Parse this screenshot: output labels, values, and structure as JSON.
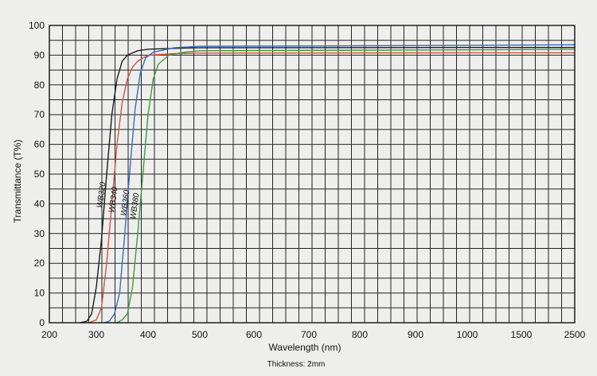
{
  "chart_data": {
    "type": "line",
    "title": "",
    "xlabel": "Wavelength (nm)",
    "ylabel": "Transmittance (T%)",
    "note": "Thickness: 2mm",
    "x_ticks": [
      "200",
      "300",
      "400",
      "500",
      "600",
      "700",
      "800",
      "900",
      "1000",
      "1500",
      "2500"
    ],
    "y_ticks": [
      "0",
      "10",
      "20",
      "30",
      "40",
      "50",
      "60",
      "70",
      "80",
      "90",
      "100"
    ],
    "xlim": [
      200,
      2500
    ],
    "ylim": [
      0,
      100
    ],
    "grid": true,
    "series": [
      {
        "name": "WB320",
        "color": "#1a1a1a",
        "points": [
          [
            265,
            0
          ],
          [
            280,
            0.5
          ],
          [
            290,
            3
          ],
          [
            300,
            12
          ],
          [
            310,
            28
          ],
          [
            320,
            50
          ],
          [
            330,
            70
          ],
          [
            340,
            82
          ],
          [
            350,
            88
          ],
          [
            360,
            90
          ],
          [
            380,
            91.5
          ],
          [
            400,
            92
          ],
          [
            450,
            92.3
          ],
          [
            500,
            92.5
          ],
          [
            1000,
            92.6
          ],
          [
            2500,
            92.6
          ]
        ]
      },
      {
        "name": "WB340",
        "color": "#d2553a",
        "points": [
          [
            285,
            0
          ],
          [
            300,
            1
          ],
          [
            310,
            5
          ],
          [
            320,
            20
          ],
          [
            330,
            40
          ],
          [
            340,
            60
          ],
          [
            350,
            74
          ],
          [
            360,
            82
          ],
          [
            370,
            86
          ],
          [
            380,
            88
          ],
          [
            400,
            90
          ],
          [
            450,
            90.5
          ],
          [
            500,
            90.7
          ],
          [
            1000,
            90.8
          ],
          [
            2500,
            90.8
          ]
        ]
      },
      {
        "name": "WB360",
        "color": "#2f6fc7",
        "points": [
          [
            315,
            0
          ],
          [
            325,
            0.5
          ],
          [
            335,
            3
          ],
          [
            345,
            10
          ],
          [
            355,
            30
          ],
          [
            365,
            52
          ],
          [
            375,
            72
          ],
          [
            385,
            84
          ],
          [
            395,
            89
          ],
          [
            410,
            91
          ],
          [
            450,
            92.5
          ],
          [
            500,
            93
          ],
          [
            1000,
            93.3
          ],
          [
            2500,
            93.5
          ]
        ]
      },
      {
        "name": "WB380",
        "color": "#3d9a3d",
        "points": [
          [
            340,
            0
          ],
          [
            350,
            1
          ],
          [
            360,
            3
          ],
          [
            370,
            12
          ],
          [
            380,
            30
          ],
          [
            390,
            50
          ],
          [
            400,
            70
          ],
          [
            410,
            82
          ],
          [
            420,
            87
          ],
          [
            440,
            90
          ],
          [
            470,
            91
          ],
          [
            500,
            91.5
          ],
          [
            1000,
            91.8
          ],
          [
            2500,
            92
          ]
        ]
      }
    ]
  }
}
